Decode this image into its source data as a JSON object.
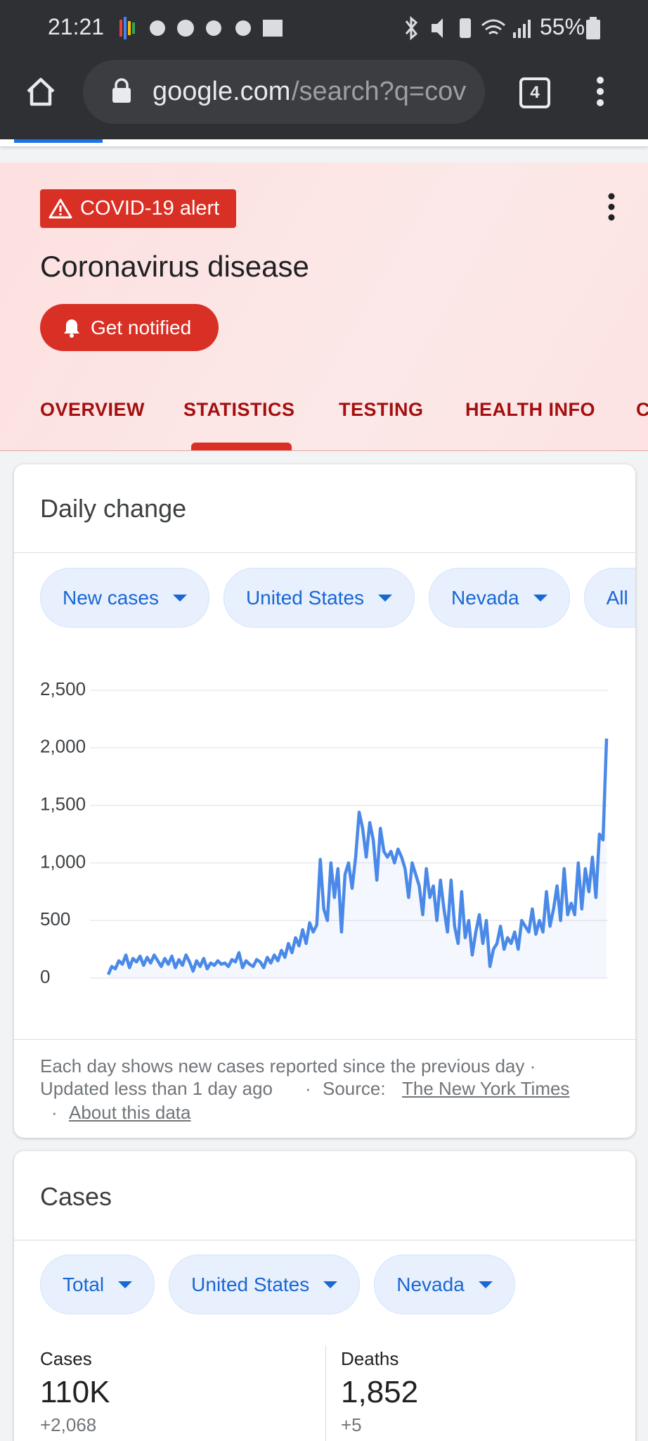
{
  "status_bar": {
    "time": "21:21",
    "battery": "55%"
  },
  "browser": {
    "url_host": "google.com",
    "url_path": "/search?q=cov",
    "tab_count": 4
  },
  "alert": {
    "badge": "COVID-19 alert",
    "title": "Coronavirus disease",
    "button": "Get notified"
  },
  "tabs": [
    "OVERVIEW",
    "STATISTICS",
    "TESTING",
    "HEALTH INFO",
    "C"
  ],
  "daily_change": {
    "title": "Daily change",
    "filters": [
      "New cases",
      "United States",
      "Nevada",
      "All"
    ],
    "footer": {
      "description": "Each day shows new cases reported since the previous day ·",
      "updated": "Updated less than 1 day ago",
      "separator": "·",
      "source_label": "Source:",
      "source": "The New York Times",
      "about": "About this data"
    }
  },
  "chart_data": {
    "type": "line",
    "color": "#4a89e8",
    "values": [
      30,
      100,
      80,
      150,
      120,
      200,
      90,
      170,
      140,
      190,
      110,
      180,
      130,
      200,
      150,
      100,
      170,
      120,
      190,
      90,
      160,
      110,
      200,
      140,
      60,
      150,
      100,
      170,
      80,
      130,
      110,
      150,
      120,
      130,
      100,
      160,
      140,
      220,
      90,
      150,
      120,
      100,
      160,
      140,
      90,
      180,
      130,
      200,
      150,
      240,
      180,
      300,
      220,
      350,
      280,
      420,
      300,
      480,
      400,
      460,
      1030,
      600,
      500,
      1000,
      700,
      950,
      400,
      900,
      1000,
      780,
      1050,
      1440,
      1300,
      1050,
      1350,
      1200,
      850,
      1300,
      1100,
      1050,
      1100,
      1000,
      1120,
      1050,
      950,
      700,
      1000,
      900,
      800,
      550,
      950,
      700,
      800,
      500,
      850,
      600,
      400,
      850,
      450,
      300,
      750,
      350,
      500,
      200,
      400,
      550,
      300,
      500,
      100,
      250,
      300,
      450,
      250,
      350,
      300,
      400,
      250,
      500,
      450,
      400,
      600,
      380,
      500,
      400,
      750,
      450,
      600,
      800,
      500,
      950,
      550,
      650,
      550,
      1000,
      600,
      950,
      750,
      1050,
      700,
      1250,
      1200,
      2080
    ],
    "ylim": [
      0,
      2500
    ],
    "yticks": [
      0,
      500,
      {
        "value": 1000,
        "label": "1,000"
      },
      {
        "value": 1500,
        "label": "1,500"
      },
      {
        "value": 2000,
        "label": "2,000"
      },
      {
        "value": 2500,
        "label": "2,500"
      }
    ],
    "grid": true
  },
  "cases": {
    "title": "Cases",
    "filters": [
      "Total",
      "United States",
      "Nevada"
    ],
    "stats": [
      {
        "label": "Cases",
        "value": "110K",
        "change": "+2,068"
      },
      {
        "label": "Deaths",
        "value": "1,852",
        "change": "+5"
      }
    ]
  }
}
